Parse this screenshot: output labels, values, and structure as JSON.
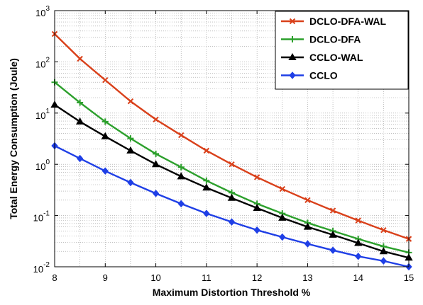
{
  "chart_data": {
    "type": "line",
    "title": "",
    "xlabel": "Maximum Distortion Threshold %",
    "ylabel": "Total Energy Consumption (Joule)",
    "xlim": [
      8,
      15
    ],
    "ylim": [
      0.01,
      1000
    ],
    "yscale": "log",
    "grid": true,
    "legend_position": "top-right",
    "x_ticks": [
      "8",
      "9",
      "10",
      "11",
      "12",
      "13",
      "14",
      "15"
    ],
    "y_ticks": [
      {
        "base": "10",
        "exp": "-2"
      },
      {
        "base": "10",
        "exp": "-1"
      },
      {
        "base": "10",
        "exp": "0"
      },
      {
        "base": "10",
        "exp": "1"
      },
      {
        "base": "10",
        "exp": "2"
      },
      {
        "base": "10",
        "exp": "3"
      }
    ],
    "x": [
      8,
      8.5,
      9,
      9.5,
      10,
      10.5,
      11,
      11.5,
      12,
      12.5,
      13,
      13.5,
      14,
      14.5,
      15
    ],
    "series": [
      {
        "name": "DCLO-DFA-WAL",
        "color": "#d9401a",
        "marker": "x",
        "values": [
          350,
          115,
          44,
          17,
          7.5,
          3.7,
          1.85,
          1.0,
          0.56,
          0.33,
          0.2,
          0.125,
          0.08,
          0.052,
          0.035
        ]
      },
      {
        "name": "DCLO-DFA",
        "color": "#2ca02c",
        "marker": "plus",
        "values": [
          40,
          16,
          6.8,
          3.2,
          1.6,
          0.88,
          0.48,
          0.28,
          0.17,
          0.11,
          0.072,
          0.05,
          0.035,
          0.025,
          0.019
        ]
      },
      {
        "name": "CCLO-WAL",
        "color": "#000000",
        "marker": "triangle",
        "values": [
          14.5,
          6.8,
          3.5,
          1.85,
          1.0,
          0.58,
          0.35,
          0.22,
          0.14,
          0.09,
          0.06,
          0.042,
          0.029,
          0.02,
          0.015
        ]
      },
      {
        "name": "CCLO",
        "color": "#1f3fe6",
        "marker": "diamond",
        "values": [
          2.3,
          1.3,
          0.74,
          0.44,
          0.27,
          0.17,
          0.11,
          0.075,
          0.052,
          0.038,
          0.028,
          0.021,
          0.016,
          0.013,
          0.01
        ]
      }
    ]
  }
}
